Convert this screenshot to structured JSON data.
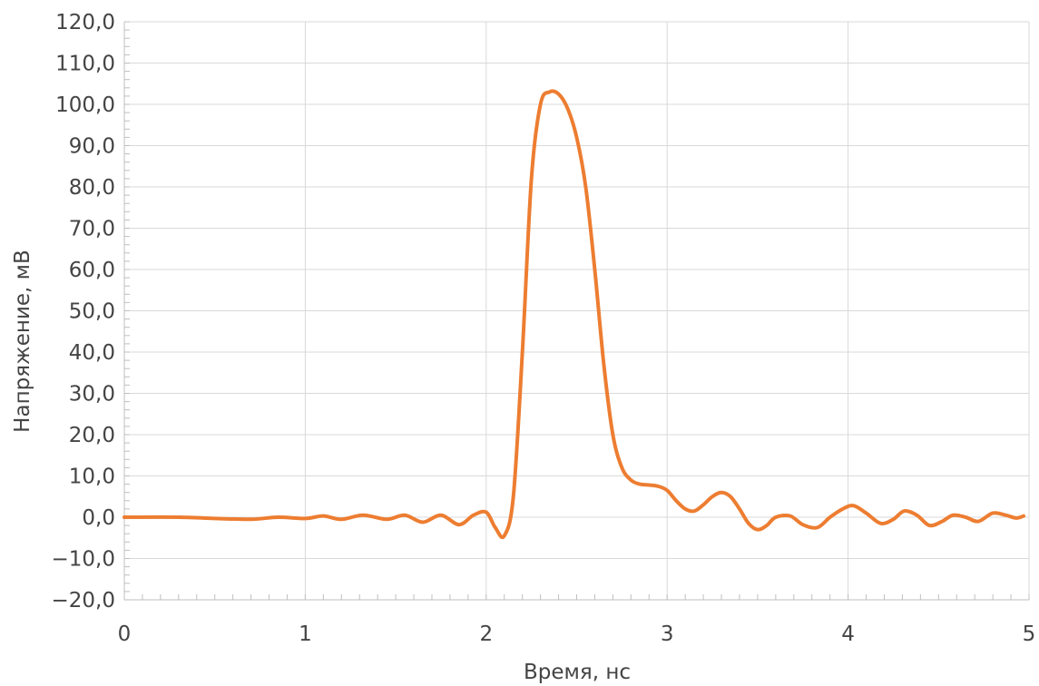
{
  "chart_data": {
    "type": "line",
    "title": "",
    "xlabel": "Время, нс",
    "ylabel": "Напряжение, мВ",
    "xlim": [
      0,
      5
    ],
    "ylim": [
      -20,
      120
    ],
    "x_ticks": [
      0,
      1,
      2,
      3,
      4,
      5
    ],
    "x_tick_labels": [
      "0",
      "1",
      "2",
      "3",
      "4",
      "5"
    ],
    "y_ticks": [
      -20,
      -10,
      0,
      10,
      20,
      30,
      40,
      50,
      60,
      70,
      80,
      90,
      100,
      110,
      120
    ],
    "y_tick_labels": [
      "−20,0",
      "−10,0",
      "0,0",
      "10,0",
      "20,0",
      "30,0",
      "40,0",
      "50,0",
      "60,0",
      "70,0",
      "80,0",
      "90,0",
      "100,0",
      "110,0",
      "120,0"
    ],
    "grid": true,
    "line_color": "#ED7D31",
    "series": [
      {
        "x": [
          0,
          0.3,
          0.5,
          0.7,
          0.85,
          1.0,
          1.1,
          1.2,
          1.32,
          1.45,
          1.55,
          1.65,
          1.75,
          1.85,
          1.93,
          2.0,
          2.05,
          2.1,
          2.15,
          2.2,
          2.25,
          2.3,
          2.35,
          2.4,
          2.45,
          2.5,
          2.55,
          2.6,
          2.65,
          2.7,
          2.75,
          2.8,
          2.85,
          2.9,
          2.95,
          3.0,
          3.05,
          3.1,
          3.15,
          3.2,
          3.25,
          3.3,
          3.35,
          3.4,
          3.45,
          3.5,
          3.55,
          3.6,
          3.68,
          3.75,
          3.83,
          3.9,
          3.97,
          4.03,
          4.1,
          4.18,
          4.25,
          4.31,
          4.38,
          4.45,
          4.52,
          4.58,
          4.65,
          4.72,
          4.8,
          4.87,
          4.93,
          4.97
        ],
        "y": [
          0,
          0,
          -0.3,
          -0.5,
          0,
          -0.3,
          0.3,
          -0.5,
          0.5,
          -0.5,
          0.5,
          -1.2,
          0.5,
          -1.8,
          0.5,
          1.2,
          -2.5,
          -4.5,
          5,
          40,
          82,
          100,
          103,
          102.5,
          99,
          92,
          80,
          60,
          37,
          20,
          12,
          9,
          8,
          7.8,
          7.5,
          6.5,
          4,
          2,
          1.5,
          3,
          5,
          6,
          5,
          2,
          -1.5,
          -3,
          -2,
          0,
          0.3,
          -1.8,
          -2.5,
          0,
          2,
          2.8,
          1,
          -1.5,
          -0.5,
          1.5,
          0.5,
          -2,
          -1,
          0.5,
          0,
          -1,
          1,
          0.5,
          -0.2,
          0.3
        ]
      }
    ]
  }
}
